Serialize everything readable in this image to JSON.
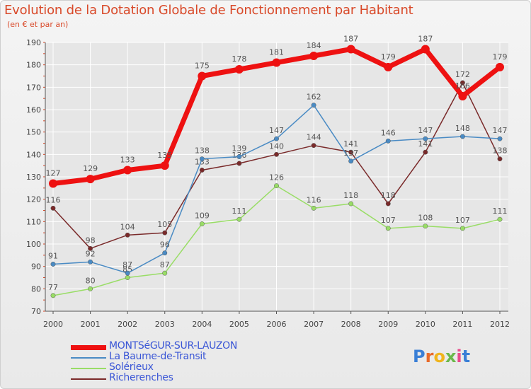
{
  "header": {
    "title": "Evolution de la Dotation Globale de Fonctionnement par Habitant",
    "subtitle": "(en € et par an)"
  },
  "brand": {
    "text": "Proxiti"
  },
  "colors": {
    "title": "#d94a2a",
    "axis": "#555555",
    "grid": "#ffffff",
    "legend_text": "#3a56d6",
    "tick_marks": "#d94a2a"
  },
  "chart_data": {
    "type": "line",
    "x": [
      "2000",
      "2001",
      "2002",
      "2003",
      "2004",
      "2005",
      "2006",
      "2007",
      "2008",
      "2009",
      "2010",
      "2011",
      "2012"
    ],
    "ylim": [
      70,
      190
    ],
    "yticks": [
      70,
      80,
      90,
      100,
      110,
      120,
      130,
      140,
      150,
      160,
      170,
      180,
      190
    ],
    "grid": true,
    "legend_position": "bottom-left",
    "series": [
      {
        "name": "MONTSéGUR-SUR-LAUZON",
        "color": "#ee1111",
        "width": 7,
        "values": [
          127,
          129,
          133,
          135,
          175,
          178,
          181,
          184,
          187,
          179,
          187,
          166,
          179
        ]
      },
      {
        "name": "La Baume-de-Transit",
        "color": "#4a8bc4",
        "width": 1.5,
        "values": [
          91,
          92,
          87,
          96,
          138,
          139,
          147,
          162,
          137,
          146,
          147,
          148,
          147
        ]
      },
      {
        "name": "Solérieux",
        "color": "#99dd66",
        "width": 1.5,
        "values": [
          77,
          80,
          85,
          87,
          109,
          111,
          126,
          116,
          118,
          107,
          108,
          107,
          111
        ]
      },
      {
        "name": "Richerenches",
        "color": "#7a2a2a",
        "width": 1.5,
        "values": [
          116,
          98,
          104,
          105,
          133,
          136,
          140,
          144,
          141,
          118,
          141,
          172,
          138
        ]
      }
    ]
  }
}
